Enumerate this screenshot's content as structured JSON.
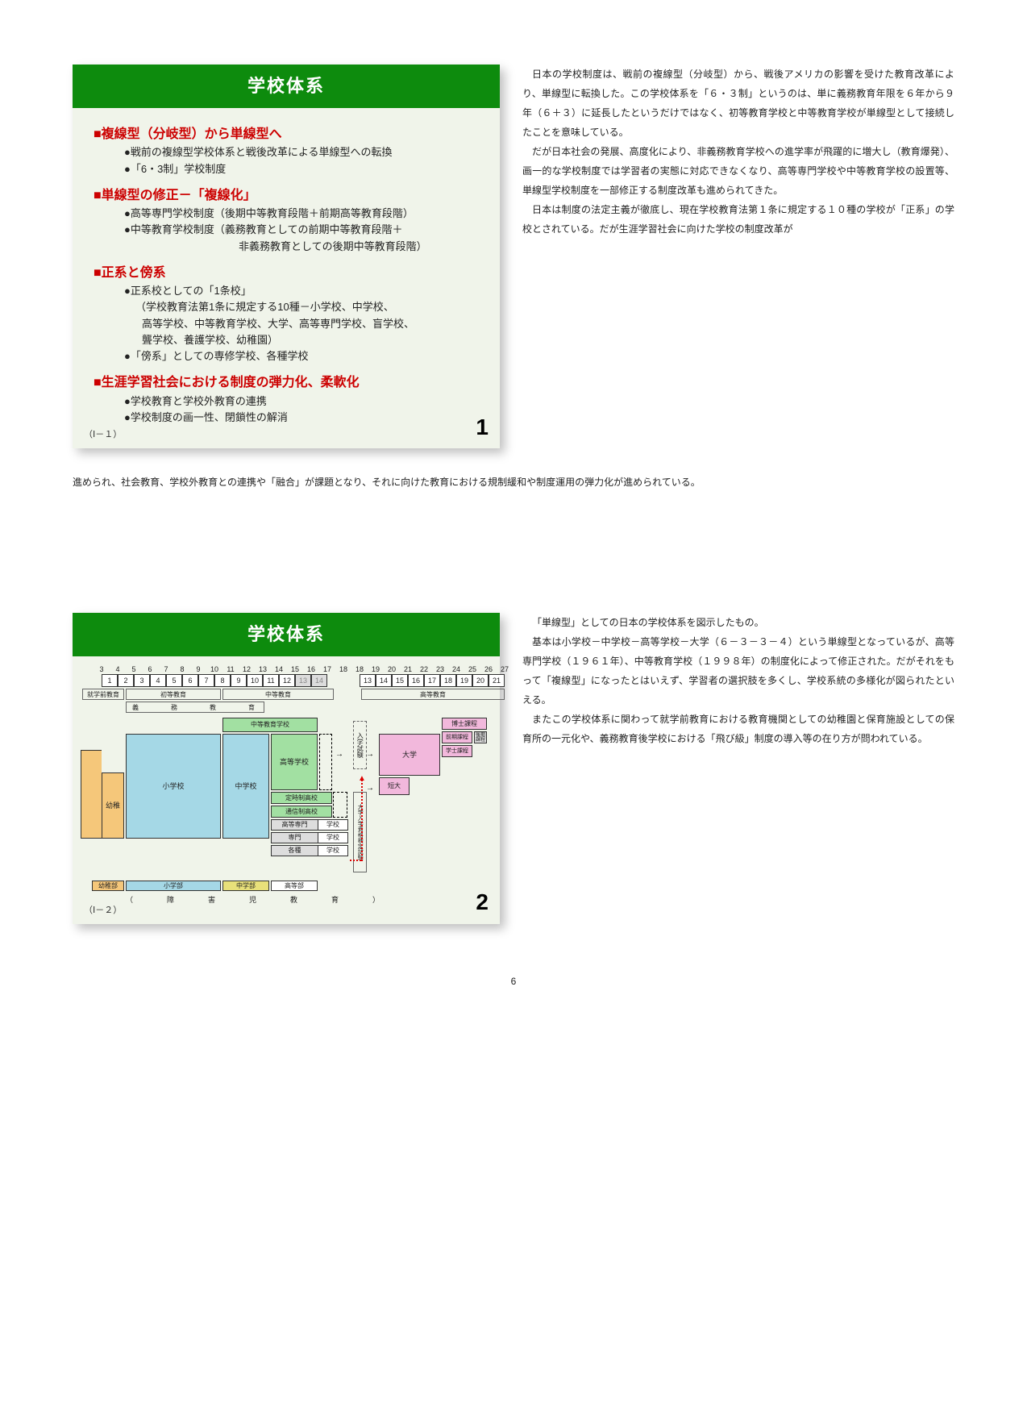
{
  "slide1": {
    "header": "学校体系",
    "id": "（Ⅰ－１）",
    "num": "1",
    "h1": "■複線型（分岐型）から単線型へ",
    "b1a": "●戦前の複線型学校体系と戦後改革による単線型への転換",
    "b1b": "●「6・3制」学校制度",
    "h2": "■単線型の修正－「複線化」",
    "b2a": "●高等専門学校制度（後期中等教育段階＋前期高等教育段階）",
    "b2b": "●中等教育学校制度（義務教育としての前期中等教育段階＋",
    "b2c": "非義務教育としての後期中等教育段階）",
    "h3": "■正系と傍系",
    "b3a": "●正系校としての「1条校」",
    "b3b": "（学校教育法第1条に規定する10種－小学校、中学校、",
    "b3c": "高等学校、中等教育学校、大学、高等専門学校、盲学校、",
    "b3d": "聾学校、養護学校、幼稚園）",
    "b3e": "●「傍系」としての専修学校、各種学校",
    "h4": "■生涯学習社会における制度の弾力化、柔軟化",
    "b4a": "●学校教育と学校外教育の連携",
    "b4b": "●学校制度の画一性、閉鎖性の解消"
  },
  "para1": "日本の学校制度は、戦前の複線型（分岐型）から、戦後アメリカの影響を受けた教育改革により、単線型に転換した。この学校体系を「６・３制」というのは、単に義務教育年限を６年から９年（６＋３）に延長したというだけではなく、初等教育学校と中等教育学校が単線型として接続したことを意味している。",
  "para1b": "だが日本社会の発展、高度化により、非義務教育学校への進学率が飛躍的に増大し（教育爆発）、画一的な学校制度では学習者の実態に対応できなくなり、高等専門学校や中等教育学校の設置等、単線型学校制度を一部修正する制度改革も進められてきた。",
  "para1c": "日本は制度の法定主義が徹底し、現在学校教育法第１条に規定する１０種の学校が「正系」の学校とされている。だが生涯学習社会に向けた学校の制度改革が",
  "cont": "進められ、社会教育、学校外教育との連携や「融合」が課題となり、それに向けた教育における規制緩和や制度運用の弾力化が進められている。",
  "slide2": {
    "header": "学校体系",
    "id": "（Ⅰ－２）",
    "num": "2",
    "ages_l": [
      "3",
      "4",
      "5",
      "6",
      "7",
      "8",
      "9",
      "10",
      "11",
      "12",
      "13",
      "14",
      "15",
      "16",
      "17",
      "18"
    ],
    "grades_l": [
      "1",
      "2",
      "3",
      "4",
      "5",
      "6",
      "7",
      "8",
      "9",
      "10",
      "11",
      "12",
      "13",
      "14"
    ],
    "ages_r": [
      "18",
      "19",
      "20",
      "21",
      "22",
      "23",
      "24",
      "25",
      "26",
      "27"
    ],
    "grades_r": [
      "13",
      "14",
      "15",
      "16",
      "17",
      "18",
      "19",
      "20",
      "21"
    ],
    "pre": "就学前教育",
    "prim": "初等教育",
    "sec": "中等教育",
    "high": "高等教育",
    "gimu": "義　　　務　　　教　　　育",
    "youchien": "幼稚園",
    "shogakko": "小学校",
    "chugakko": "中学校",
    "chutou": "中等教育学校",
    "koukou": "高等学校",
    "teiji": "定時制高校",
    "tushin": "通信制高校",
    "kosen_l": "高等専門",
    "kosen_r": "学校",
    "senmon_l": "専門",
    "senmon_r": "学校",
    "kakushu_l": "各種",
    "kakushu_r": "学校",
    "daigaku": "大学",
    "tandai": "短大",
    "hakushi": "博士課程",
    "shushi_zen": "前期課程",
    "shushi_go": "後期課程",
    "gakushi": "学士課程",
    "nyushi": "入学試験",
    "daigaku_nyushi": "大学入学資格検定試験",
    "youchibu": "幼稚部",
    "shogakubu": "小学部",
    "chugakubu": "中学部",
    "koutoubu": "高等部",
    "shougaiji": "（　　障　　害　　児　　教　　育　　）"
  },
  "para2a": "「単線型」としての日本の学校体系を図示したもの。",
  "para2b": "基本は小学校－中学校－高等学校－大学（６－３－３－４）という単線型となっているが、高等専門学校（１９６１年）、中等教育学校（１９９８年）の制度化によって修正された。だがそれをもって「複線型」になったとはいえず、学習者の選択肢を多くし、学校系統の多様化が図られたといえる。",
  "para2c": "またこの学校体系に関わって就学前教育における教育機関としての幼稚園と保育施設としての保育所の一元化や、義務教育後学校における「飛び級」制度の導入等の在り方が問われている。",
  "page_num": "6"
}
